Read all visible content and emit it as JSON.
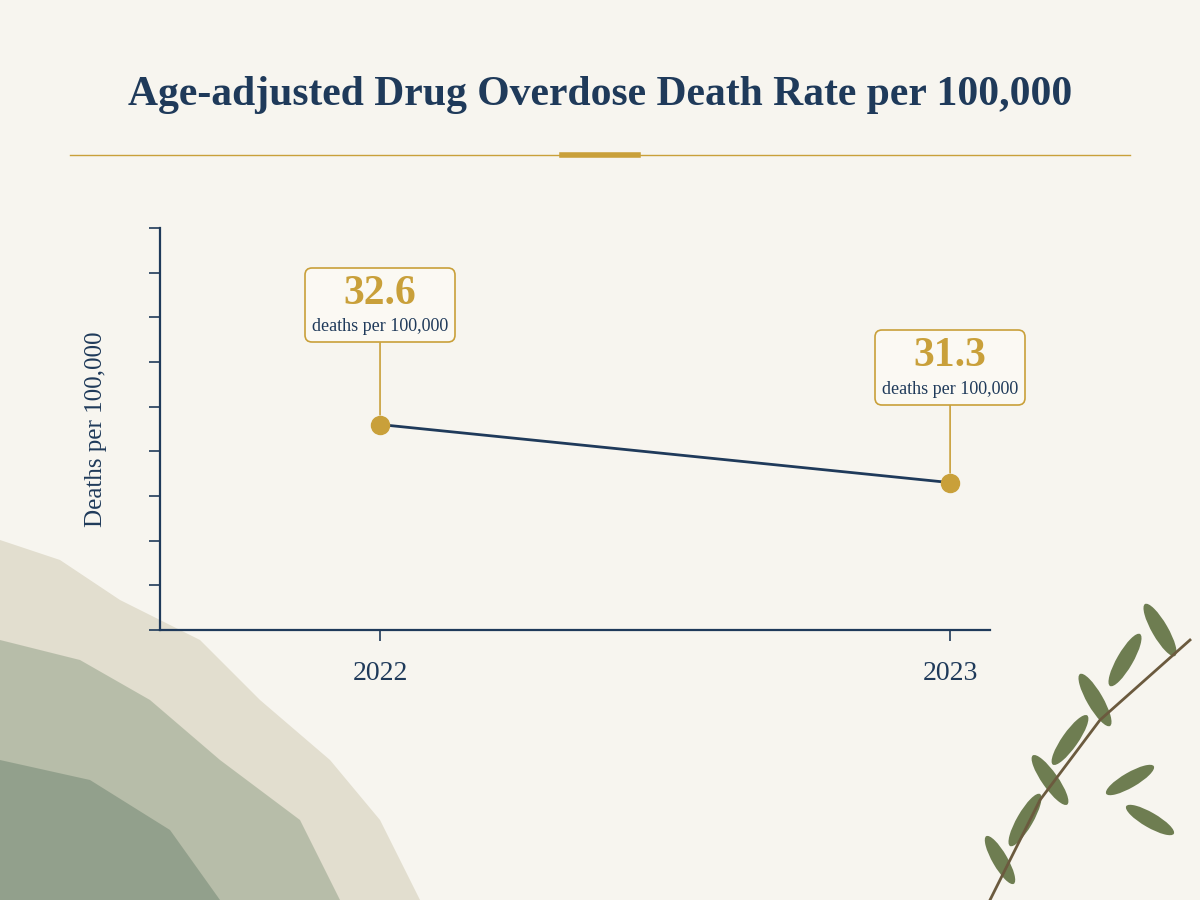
{
  "chart_data": {
    "type": "line",
    "title": "Age-adjusted Drug Overdose Death Rate per 100,000",
    "y_label": "Deaths per 100,000",
    "categories": [
      "2022",
      "2023"
    ],
    "values": [
      32.6,
      31.3
    ],
    "value_labels": [
      "32.6 deaths per 100,000",
      "31.3 deaths per 100,000"
    ],
    "data_labels": true,
    "color": "#1f3a5a",
    "marker": "o",
    "line_style": "solid",
    "ylim": [
      28,
      37
    ],
    "yticks": [
      28,
      29,
      30,
      31,
      32,
      33,
      34,
      35,
      36,
      37
    ],
    "tick_labels": "x",
    "grid": false
  }
}
